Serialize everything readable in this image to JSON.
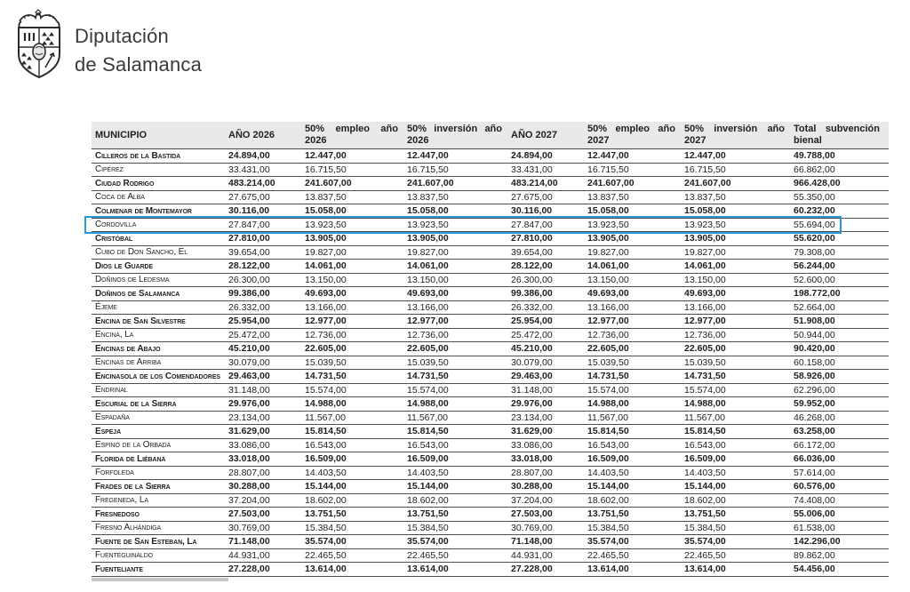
{
  "logo": {
    "line1": "Diputación",
    "line2": "de Salamanca"
  },
  "table": {
    "highlight_color": "#2399d6",
    "header_bg": "#e9e9e9",
    "columns": [
      {
        "key": "municipio",
        "label": "MUNICIPIO"
      },
      {
        "key": "ano-2026",
        "label": "AÑO 2026"
      },
      {
        "key": "empleo-2026",
        "line1": "50% empleo año",
        "line2": "2026"
      },
      {
        "key": "inversion-2026",
        "line1": "50% inversión año",
        "line2": "2026"
      },
      {
        "key": "ano-2027",
        "label": "AÑO 2027"
      },
      {
        "key": "empleo-2027",
        "line1": "50% empleo año",
        "line2": "2027"
      },
      {
        "key": "inversion-2027",
        "line1": "50% inversión año",
        "line2": "2027"
      },
      {
        "key": "total-bienal",
        "line1": "Total subvención",
        "line2": "bienal"
      }
    ],
    "rows": [
      {
        "name": "Cilleros de la Bastida",
        "bold": true,
        "highlight": false,
        "cells": [
          "24.894,00",
          "12.447,00",
          "12.447,00",
          "24.894,00",
          "12.447,00",
          "12.447,00",
          "49.788,00"
        ]
      },
      {
        "name": "Cipérez",
        "bold": false,
        "highlight": false,
        "cells": [
          "33.431,00",
          "16.715,50",
          "16.715,50",
          "33.431,00",
          "16.715,50",
          "16.715,50",
          "66.862,00"
        ]
      },
      {
        "name": "Ciudad Rodrigo",
        "bold": true,
        "highlight": false,
        "cells": [
          "483.214,00",
          "241.607,00",
          "241.607,00",
          "483.214,00",
          "241.607,00",
          "241.607,00",
          "966.428,00"
        ]
      },
      {
        "name": "Coca de Alba",
        "bold": false,
        "highlight": false,
        "cells": [
          "27.675,00",
          "13.837,50",
          "13.837,50",
          "27.675,00",
          "13.837,50",
          "13.837,50",
          "55.350,00"
        ]
      },
      {
        "name": "Colmenar de Montemayor",
        "bold": true,
        "highlight": false,
        "cells": [
          "30.116,00",
          "15.058,00",
          "15.058,00",
          "30.116,00",
          "15.058,00",
          "15.058,00",
          "60.232,00"
        ]
      },
      {
        "name": "Cordovilla",
        "bold": false,
        "highlight": true,
        "cells": [
          "27.847,00",
          "13.923,50",
          "13.923,50",
          "27.847,00",
          "13.923,50",
          "13.923,50",
          "55.694,00"
        ]
      },
      {
        "name": "Cristóbal",
        "bold": true,
        "highlight": false,
        "cells": [
          "27.810,00",
          "13.905,00",
          "13.905,00",
          "27.810,00",
          "13.905,00",
          "13.905,00",
          "55.620,00"
        ]
      },
      {
        "name": "Cubo de Don Sancho, El",
        "bold": false,
        "highlight": false,
        "cells": [
          "39.654,00",
          "19.827,00",
          "19.827,00",
          "39.654,00",
          "19.827,00",
          "19.827,00",
          "79.308,00"
        ]
      },
      {
        "name": "Dios le Guarde",
        "bold": true,
        "highlight": false,
        "cells": [
          "28.122,00",
          "14.061,00",
          "14.061,00",
          "28.122,00",
          "14.061,00",
          "14.061,00",
          "56.244,00"
        ]
      },
      {
        "name": "Doñinos de Ledesma",
        "bold": false,
        "highlight": false,
        "cells": [
          "26.300,00",
          "13.150,00",
          "13.150,00",
          "26.300,00",
          "13.150,00",
          "13.150,00",
          "52.600,00"
        ]
      },
      {
        "name": "Doñinos de Salamanca",
        "bold": true,
        "highlight": false,
        "cells": [
          "99.386,00",
          "49.693,00",
          "49.693,00",
          "99.386,00",
          "49.693,00",
          "49.693,00",
          "198.772,00"
        ]
      },
      {
        "name": "Éjeme",
        "bold": false,
        "highlight": false,
        "cells": [
          "26.332,00",
          "13.166,00",
          "13.166,00",
          "26.332,00",
          "13.166,00",
          "13.166,00",
          "52.664,00"
        ]
      },
      {
        "name": "Encina de San Silvestre",
        "bold": true,
        "highlight": false,
        "cells": [
          "25.954,00",
          "12.977,00",
          "12.977,00",
          "25.954,00",
          "12.977,00",
          "12.977,00",
          "51.908,00"
        ]
      },
      {
        "name": "Encina, La",
        "bold": false,
        "highlight": false,
        "cells": [
          "25.472,00",
          "12.736,00",
          "12.736,00",
          "25.472,00",
          "12.736,00",
          "12.736,00",
          "50.944,00"
        ]
      },
      {
        "name": "Encinas de Abajo",
        "bold": true,
        "highlight": false,
        "cells": [
          "45.210,00",
          "22.605,00",
          "22.605,00",
          "45.210,00",
          "22.605,00",
          "22.605,00",
          "90.420,00"
        ]
      },
      {
        "name": "Encinas de Arriba",
        "bold": false,
        "highlight": false,
        "cells": [
          "30.079,00",
          "15.039,50",
          "15.039,50",
          "30.079,00",
          "15.039,50",
          "15.039,50",
          "60.158,00"
        ]
      },
      {
        "name": "Encinasola de los Comendadores",
        "bold": true,
        "highlight": false,
        "cells": [
          "29.463,00",
          "14.731,50",
          "14.731,50",
          "29.463,00",
          "14.731,50",
          "14.731,50",
          "58.926,00"
        ]
      },
      {
        "name": "Endrinal",
        "bold": false,
        "highlight": false,
        "cells": [
          "31.148,00",
          "15.574,00",
          "15.574,00",
          "31.148,00",
          "15.574,00",
          "15.574,00",
          "62.296,00"
        ]
      },
      {
        "name": "Escurial de la Sierra",
        "bold": true,
        "highlight": false,
        "cells": [
          "29.976,00",
          "14.988,00",
          "14.988,00",
          "29.976,00",
          "14.988,00",
          "14.988,00",
          "59.952,00"
        ]
      },
      {
        "name": "Espadaña",
        "bold": false,
        "highlight": false,
        "cells": [
          "23.134,00",
          "11.567,00",
          "11.567,00",
          "23.134,00",
          "11.567,00",
          "11.567,00",
          "46.268,00"
        ]
      },
      {
        "name": "Espeja",
        "bold": true,
        "highlight": false,
        "cells": [
          "31.629,00",
          "15.814,50",
          "15.814,50",
          "31.629,00",
          "15.814,50",
          "15.814,50",
          "63.258,00"
        ]
      },
      {
        "name": "Espino de la Orbada",
        "bold": false,
        "highlight": false,
        "cells": [
          "33.086,00",
          "16.543,00",
          "16.543,00",
          "33.086,00",
          "16.543,00",
          "16.543,00",
          "66.172,00"
        ]
      },
      {
        "name": "Florida de Liébana",
        "bold": true,
        "highlight": false,
        "cells": [
          "33.018,00",
          "16.509,00",
          "16.509,00",
          "33.018,00",
          "16.509,00",
          "16.509,00",
          "66.036,00"
        ]
      },
      {
        "name": "Forfoleda",
        "bold": false,
        "highlight": false,
        "cells": [
          "28.807,00",
          "14.403,50",
          "14.403,50",
          "28.807,00",
          "14.403,50",
          "14.403,50",
          "57.614,00"
        ]
      },
      {
        "name": "Frades de la Sierra",
        "bold": true,
        "highlight": false,
        "cells": [
          "30.288,00",
          "15.144,00",
          "15.144,00",
          "30.288,00",
          "15.144,00",
          "15.144,00",
          "60.576,00"
        ]
      },
      {
        "name": "Fregeneda, La",
        "bold": false,
        "highlight": false,
        "cells": [
          "37.204,00",
          "18.602,00",
          "18.602,00",
          "37.204,00",
          "18.602,00",
          "18.602,00",
          "74.408,00"
        ]
      },
      {
        "name": "Fresnedoso",
        "bold": true,
        "highlight": false,
        "cells": [
          "27.503,00",
          "13.751,50",
          "13.751,50",
          "27.503,00",
          "13.751,50",
          "13.751,50",
          "55.006,00"
        ]
      },
      {
        "name": "Fresno Alhándiga",
        "bold": false,
        "highlight": false,
        "cells": [
          "30.769,00",
          "15.384,50",
          "15.384,50",
          "30.769,00",
          "15.384,50",
          "15.384,50",
          "61.538,00"
        ]
      },
      {
        "name": "Fuente de San Esteban, La",
        "bold": true,
        "highlight": false,
        "cells": [
          "71.148,00",
          "35.574,00",
          "35.574,00",
          "71.148,00",
          "35.574,00",
          "35.574,00",
          "142.296,00"
        ]
      },
      {
        "name": "Fuenteguinaldo",
        "bold": false,
        "highlight": false,
        "cells": [
          "44.931,00",
          "22.465,50",
          "22.465,50",
          "44.931,00",
          "22.465,50",
          "22.465,50",
          "89.862,00"
        ]
      },
      {
        "name": "Fuenteliante",
        "bold": true,
        "highlight": false,
        "cells": [
          "27.228,00",
          "13.614,00",
          "13.614,00",
          "27.228,00",
          "13.614,00",
          "13.614,00",
          "54.456,00"
        ]
      }
    ]
  }
}
